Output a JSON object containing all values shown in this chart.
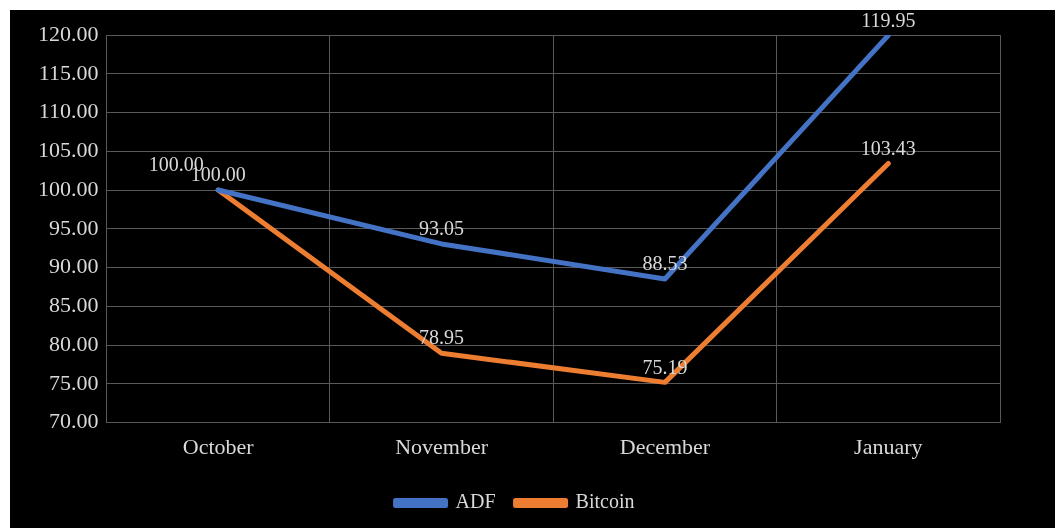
{
  "chart_data": {
    "type": "line",
    "categories": [
      "October",
      "November",
      "December",
      "January"
    ],
    "series": [
      {
        "name": "ADF",
        "color": "#4472c4",
        "values": [
          100.0,
          93.05,
          88.53,
          119.95
        ],
        "value_labels": [
          "100.00",
          "93.05",
          "88.53",
          "119.95"
        ]
      },
      {
        "name": "Bitcoin",
        "color": "#ed7d31",
        "values": [
          100.0,
          78.95,
          75.19,
          103.43
        ],
        "value_labels": [
          "100.00",
          "78.95",
          "75.19",
          "103.43"
        ]
      }
    ],
    "ylim": [
      70,
      120
    ],
    "yticks": [
      {
        "value": 70,
        "label": "70.00"
      },
      {
        "value": 75,
        "label": "75.00"
      },
      {
        "value": 80,
        "label": "80.00"
      },
      {
        "value": 85,
        "label": "85.00"
      },
      {
        "value": 90,
        "label": "90.00"
      },
      {
        "value": 95,
        "label": "95.00"
      },
      {
        "value": 100,
        "label": "100.00"
      },
      {
        "value": 105,
        "label": "105.00"
      },
      {
        "value": 110,
        "label": "110.00"
      },
      {
        "value": 115,
        "label": "115.00"
      },
      {
        "value": 120,
        "label": "120.00"
      }
    ],
    "data_labels": false,
    "grid": true,
    "legend": "bottom",
    "marker": "none",
    "line_style": "solid"
  }
}
